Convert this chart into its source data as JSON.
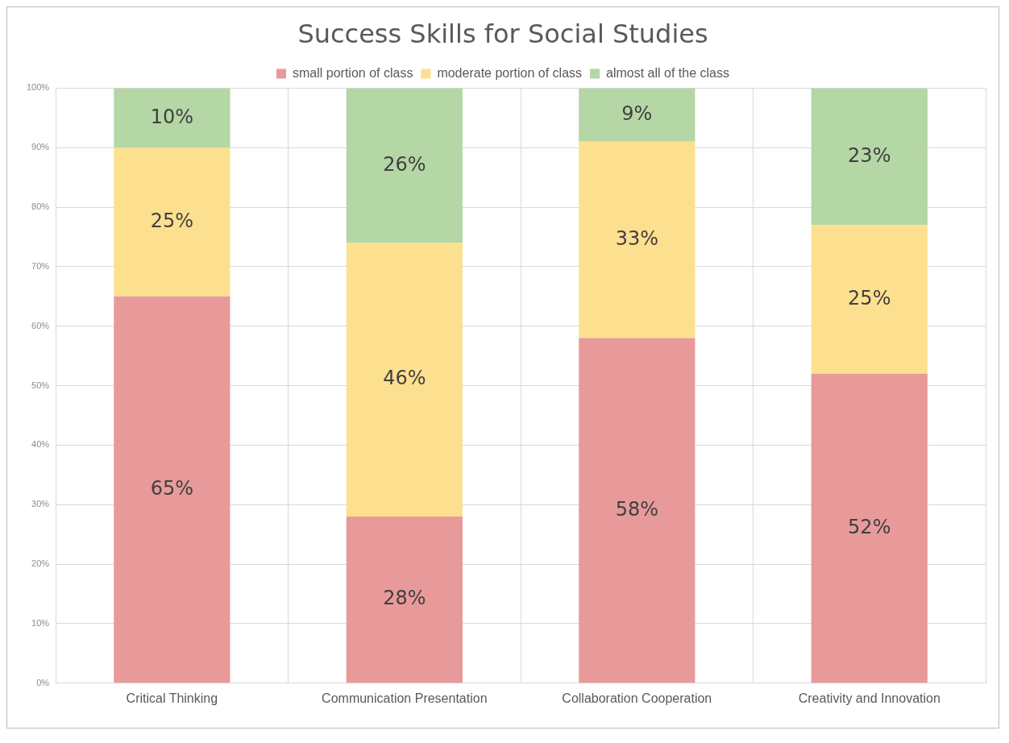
{
  "chart_data": {
    "type": "bar",
    "title": "Success Skills for Social Studies",
    "categories": [
      "Critical Thinking",
      "Communication Presentation",
      "Collaboration Cooperation",
      "Creativity and Innovation"
    ],
    "stacked": true,
    "series": [
      {
        "name": "small portion of class",
        "color": "#e89a9a",
        "values": [
          65,
          28,
          58,
          52
        ],
        "value_labels": [
          "65%",
          "28%",
          "58%",
          "52%"
        ]
      },
      {
        "name": "moderate portion of class",
        "color": "#fde08f",
        "values": [
          25,
          46,
          33,
          25
        ],
        "value_labels": [
          "25%",
          "46%",
          "33%",
          "25%"
        ]
      },
      {
        "name": "almost all of the class",
        "color": "#b5d6a5",
        "values": [
          10,
          26,
          9,
          23
        ],
        "value_labels": [
          "10%",
          "26%",
          "9%",
          "23%"
        ]
      }
    ],
    "ylim": [
      0,
      100
    ],
    "yticks": [
      {
        "value": 0,
        "label": "0%"
      },
      {
        "value": 10,
        "label": "10%"
      },
      {
        "value": 20,
        "label": "20%"
      },
      {
        "value": 30,
        "label": "30%"
      },
      {
        "value": 40,
        "label": "40%"
      },
      {
        "value": 50,
        "label": "50%"
      },
      {
        "value": 60,
        "label": "60%"
      },
      {
        "value": 70,
        "label": "70%"
      },
      {
        "value": 80,
        "label": "80%"
      },
      {
        "value": 90,
        "label": "90%"
      },
      {
        "value": 100,
        "label": "100%"
      }
    ],
    "grid": true,
    "legend": "top"
  }
}
